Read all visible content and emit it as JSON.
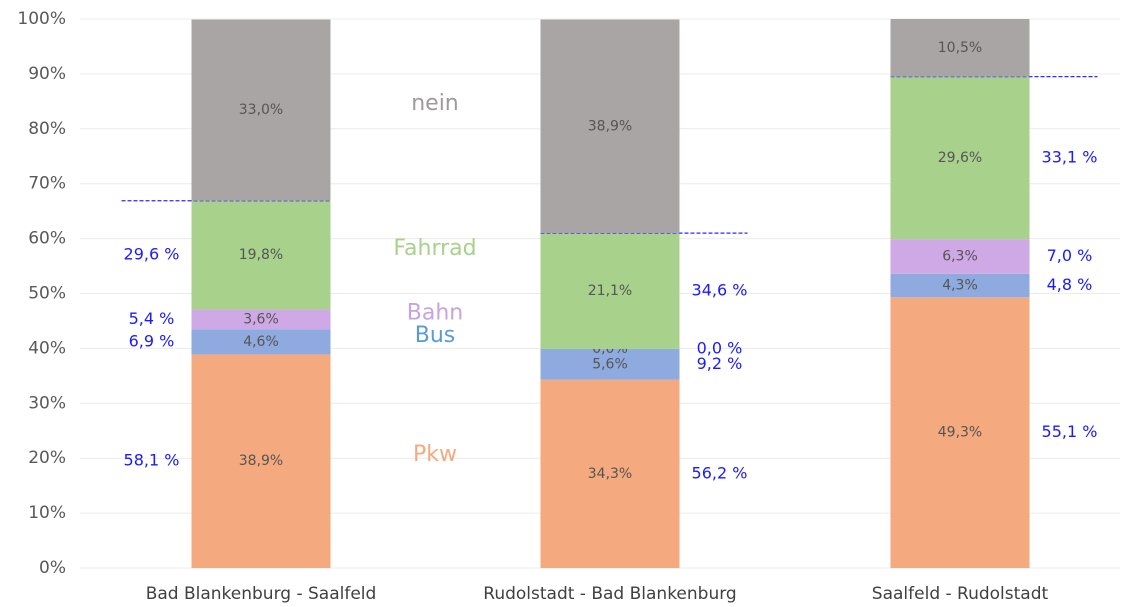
{
  "chart_data": {
    "type": "stacked_bar",
    "categories": [
      "Bad Blankenburg - Saalfeld",
      "Rudolstadt - Bad Blankenburg",
      "Saalfeld - Rudolstadt"
    ],
    "series": [
      {
        "name": "Pkw",
        "color": "#f4aa7e",
        "label_color": "#f4aa7e",
        "values": [
          38.9,
          34.3,
          49.3
        ],
        "value_labels": [
          "38,9%",
          "34,3%",
          "49,3%"
        ]
      },
      {
        "name": "Bus",
        "color": "#8eaadf",
        "label_color": "#5b9bd5",
        "values": [
          4.6,
          5.6,
          4.3
        ],
        "value_labels": [
          "4,6%",
          "5,6%",
          "4,3%"
        ]
      },
      {
        "name": "Bahn",
        "color": "#cfa8e6",
        "label_color": "#c7a3e3",
        "values": [
          3.6,
          0.0,
          6.3
        ],
        "value_labels": [
          "3,6%",
          "0,0%",
          "6,3%"
        ]
      },
      {
        "name": "Fahrrad",
        "color": "#a8d18c",
        "label_color": "#a8d18c",
        "values": [
          19.8,
          21.1,
          29.6
        ],
        "value_labels": [
          "19,8%",
          "21,1%",
          "29,6%"
        ]
      },
      {
        "name": "nein",
        "color": "#aaa5a5",
        "label_color": "#9e9a9a",
        "values": [
          33.0,
          38.9,
          10.5
        ],
        "value_labels": [
          "33,0%",
          "38,9%",
          "10,5%"
        ]
      }
    ],
    "shares": [
      {
        "values": [
          58.1,
          6.9,
          5.4,
          29.6
        ],
        "value_labels": [
          "58,1 %",
          "6,9 %",
          "5,4 %",
          "29,6 %"
        ]
      },
      {
        "values": [
          56.2,
          9.2,
          0.0,
          34.6
        ],
        "value_labels": [
          "56,2 %",
          "9,2 %",
          "0,0 %",
          "34,6 %"
        ]
      },
      {
        "values": [
          55.1,
          4.8,
          7.0,
          33.1
        ],
        "value_labels": [
          "55,1 %",
          "4,8 %",
          "7,0 %",
          "33,1 %"
        ]
      }
    ],
    "share_color": "#1a1aff",
    "ylim": [
      0,
      100
    ],
    "yticks": [
      {
        "value": 0,
        "label": "0%"
      },
      {
        "value": 10,
        "label": "10%"
      },
      {
        "value": 20,
        "label": "20%"
      },
      {
        "value": 30,
        "label": "30%"
      },
      {
        "value": 40,
        "label": "40%"
      },
      {
        "value": 50,
        "label": "50%"
      },
      {
        "value": 60,
        "label": "60%"
      },
      {
        "value": 70,
        "label": "70%"
      },
      {
        "value": 80,
        "label": "80%"
      },
      {
        "value": 90,
        "label": "90%"
      },
      {
        "value": 100,
        "label": "100%"
      }
    ],
    "grid": true
  }
}
